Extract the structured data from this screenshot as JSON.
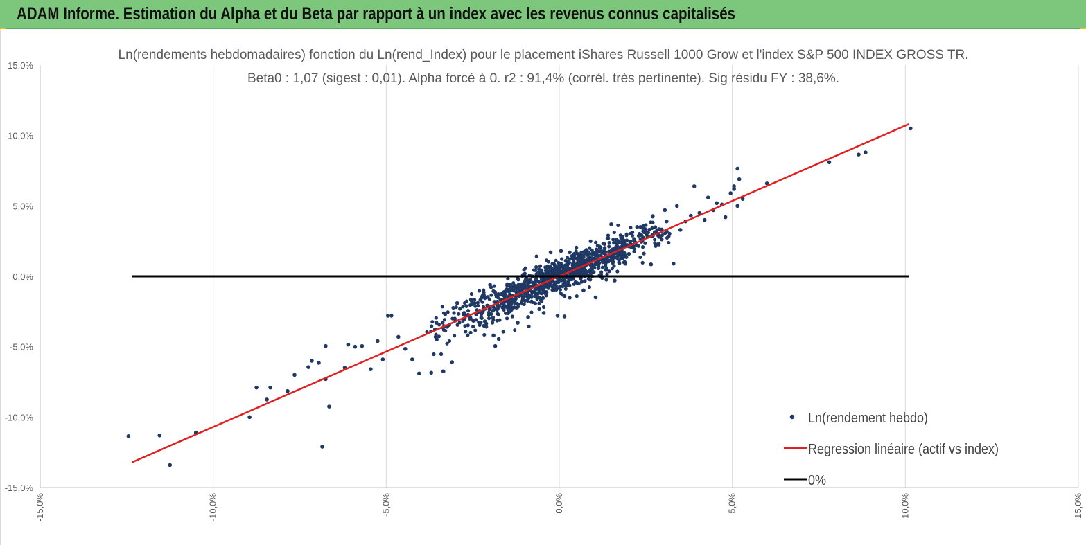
{
  "header": {
    "title": "ADAM Informe. Estimation du Alpha et du Beta par rapport à un index avec les revenus connus capitalisés"
  },
  "chart_data": {
    "type": "scatter",
    "title_line1": "Ln(rendements hebdomadaires) fonction du Ln(rend_Index) pour le placement iShares Russell 1000 Grow et l'index S&P 500 INDEX GROSS TR.",
    "title_line2": "Beta0 : 1,07 (sigest : 0,01). Alpha forcé à 0. r2 : 91,4% (corrél. très pertinente). Sig résidu FY : 38,6%.",
    "xlim": [
      -0.15,
      0.15
    ],
    "ylim": [
      -0.15,
      0.15
    ],
    "x_ticks": [
      "-15,0%",
      "-10,0%",
      "-5,0%",
      "0,0%",
      "5,0%",
      "10,0%",
      "15,0%"
    ],
    "y_ticks": [
      "15,0%",
      "10,0%",
      "5,0%",
      "0,0%",
      "-5,0%",
      "-10,0%",
      "-15,0%"
    ],
    "grid": "vertical",
    "legend_position": "bottom-right",
    "legend": [
      {
        "label": "Ln(rendement hebdo)",
        "color": "#1f3864",
        "kind": "marker"
      },
      {
        "label": "Regression linéaire (actif vs index)",
        "color": "#e02020",
        "kind": "line"
      },
      {
        "label": "0%",
        "color": "#000000",
        "kind": "line"
      }
    ],
    "series": [
      {
        "name": "Ln(rendement hebdo)",
        "color": "#1f3864",
        "points": [
          [
            -0.1245,
            -0.1135
          ],
          [
            -0.1155,
            -0.113
          ],
          [
            -0.1125,
            -0.134
          ],
          [
            -0.105,
            -0.111
          ],
          [
            -0.0895,
            -0.1
          ],
          [
            -0.0875,
            -0.079
          ],
          [
            -0.0845,
            -0.0875
          ],
          [
            -0.0835,
            -0.079
          ],
          [
            -0.0785,
            -0.0815
          ],
          [
            -0.0765,
            -0.07
          ],
          [
            -0.0725,
            -0.0645
          ],
          [
            -0.0715,
            -0.06
          ],
          [
            -0.0695,
            -0.0615
          ],
          [
            -0.0685,
            -0.121
          ],
          [
            -0.0675,
            -0.0495
          ],
          [
            -0.0675,
            -0.073
          ],
          [
            -0.0665,
            -0.0925
          ],
          [
            -0.062,
            -0.065
          ],
          [
            -0.061,
            -0.0485
          ],
          [
            -0.059,
            -0.05
          ],
          [
            -0.057,
            -0.0495
          ],
          [
            -0.0545,
            -0.066
          ],
          [
            -0.0525,
            -0.046
          ],
          [
            -0.051,
            -0.059
          ],
          [
            -0.0495,
            -0.028
          ],
          [
            -0.0485,
            -0.028
          ],
          [
            -0.0465,
            -0.043
          ],
          [
            -0.0445,
            -0.0515
          ],
          [
            -0.0425,
            -0.059
          ],
          [
            -0.0405,
            -0.069
          ],
          [
            -0.037,
            -0.0685
          ],
          [
            -0.0335,
            -0.0675
          ],
          [
            -0.031,
            -0.061
          ],
          [
            -0.0355,
            -0.033
          ],
          [
            -0.0295,
            -0.019
          ],
          [
            -0.0275,
            -0.026
          ],
          [
            -0.023,
            -0.0245
          ],
          [
            -0.0215,
            -0.032
          ],
          [
            -0.019,
            -0.042
          ],
          [
            -0.0185,
            -0.0495
          ],
          [
            -0.0175,
            -0.0445
          ],
          [
            -0.02,
            -0.006
          ],
          [
            -0.0145,
            -0.017
          ],
          [
            -0.012,
            -0.033
          ],
          [
            -0.009,
            -0.029
          ],
          [
            -0.0065,
            -0.007
          ],
          [
            -0.0045,
            -0.026
          ],
          [
            -0.0025,
            0.017
          ],
          [
            -0.001,
            -0.0065
          ],
          [
            0.0005,
            0.018
          ],
          [
            -0.0005,
            -0.028
          ],
          [
            0.0015,
            -0.0285
          ],
          [
            0.003,
            0.017
          ],
          [
            0.0055,
            0.0125
          ],
          [
            0.007,
            -0.01
          ],
          [
            0.0085,
            -0.002
          ],
          [
            0.0105,
            -0.015
          ],
          [
            0.0135,
            0.0045
          ],
          [
            0.016,
            -0.003
          ],
          [
            0.0165,
            0.0185
          ],
          [
            0.015,
            0.037
          ],
          [
            0.0195,
            0.0255
          ],
          [
            0.0225,
            0.035
          ],
          [
            0.0255,
            0.028
          ],
          [
            0.0265,
            0.0085
          ],
          [
            0.027,
            0.0425
          ],
          [
            0.0285,
            0.03
          ],
          [
            0.0305,
            0.047
          ],
          [
            0.031,
            0.039
          ],
          [
            0.033,
            0.009
          ],
          [
            0.034,
            0.05
          ],
          [
            0.035,
            0.033
          ],
          [
            0.0365,
            0.039
          ],
          [
            0.038,
            0.043
          ],
          [
            0.039,
            0.064
          ],
          [
            0.0405,
            0.045
          ],
          [
            0.042,
            0.04
          ],
          [
            0.043,
            0.056
          ],
          [
            0.0445,
            0.047
          ],
          [
            0.0455,
            0.052
          ],
          [
            0.047,
            0.051
          ],
          [
            0.048,
            0.042
          ],
          [
            0.0495,
            0.059
          ],
          [
            0.0505,
            0.062
          ],
          [
            0.0515,
            0.05
          ],
          [
            0.052,
            0.069
          ],
          [
            0.0515,
            0.0765
          ],
          [
            0.0505,
            0.064
          ],
          [
            0.053,
            0.055
          ],
          [
            0.06,
            0.066
          ],
          [
            0.078,
            0.081
          ],
          [
            0.0865,
            0.0865
          ],
          [
            0.0885,
            0.088
          ],
          [
            0.1015,
            0.105
          ]
        ],
        "cloud": [
          {
            "x_from": -0.04,
            "x_to": 0.033,
            "slope": 1.07,
            "spread": 0.0065,
            "count": 1100
          }
        ]
      },
      {
        "name": "Regression linéaire (actif vs index)",
        "color": "#e02020",
        "points": [
          [
            -0.1235,
            -0.1321
          ],
          [
            0.101,
            0.1081
          ]
        ]
      },
      {
        "name": "0%",
        "color": "#000000",
        "points": [
          [
            -0.1235,
            0.0
          ],
          [
            0.101,
            0.0
          ]
        ]
      }
    ]
  }
}
